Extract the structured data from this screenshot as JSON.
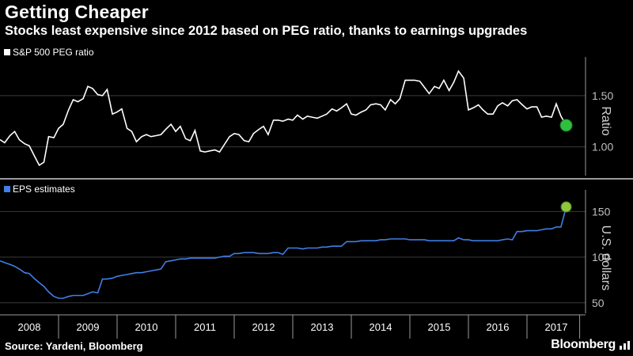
{
  "header": {
    "title": "Getting Cheaper",
    "subtitle": "Stocks least expensive since 2012 based on PEG ratio, thanks to earnings upgrades"
  },
  "footer": {
    "source": "Source: Yardeni, Bloomberg",
    "brand": "Bloomberg"
  },
  "colors": {
    "background": "#000000",
    "peg_line": "#ffffff",
    "eps_line": "#3f7fe6",
    "highlight": "#27b33a",
    "highlight_fill": "#8dc63f"
  },
  "chart_data": [
    {
      "type": "line",
      "legend": "S&P 500 PEG ratio",
      "ylabel": "Ratio",
      "ylim": [
        0.75,
        1.8
      ],
      "yticks": [
        "1.00",
        "1.50"
      ],
      "xlim": [
        2008.0,
        2018.0
      ],
      "xticks": [
        "2008",
        "2009",
        "2010",
        "2011",
        "2012",
        "2013",
        "2014",
        "2015",
        "2016",
        "2017"
      ],
      "highlight_last": true,
      "series": [
        {
          "name": "S&P 500 PEG ratio",
          "x": [
            2008.0,
            2008.08,
            2008.17,
            2008.25,
            2008.33,
            2008.42,
            2008.5,
            2008.58,
            2008.67,
            2008.75,
            2008.83,
            2008.92,
            2009.0,
            2009.08,
            2009.17,
            2009.25,
            2009.33,
            2009.42,
            2009.5,
            2009.58,
            2009.67,
            2009.75,
            2009.83,
            2009.92,
            2010.0,
            2010.08,
            2010.17,
            2010.25,
            2010.33,
            2010.42,
            2010.5,
            2010.58,
            2010.67,
            2010.75,
            2010.83,
            2010.92,
            2011.0,
            2011.08,
            2011.17,
            2011.25,
            2011.33,
            2011.42,
            2011.5,
            2011.58,
            2011.67,
            2011.75,
            2011.83,
            2011.92,
            2012.0,
            2012.08,
            2012.17,
            2012.25,
            2012.33,
            2012.42,
            2012.5,
            2012.58,
            2012.67,
            2012.75,
            2012.83,
            2012.92,
            2013.0,
            2013.08,
            2013.17,
            2013.25,
            2013.33,
            2013.42,
            2013.5,
            2013.58,
            2013.67,
            2013.75,
            2013.83,
            2013.92,
            2014.0,
            2014.08,
            2014.17,
            2014.25,
            2014.33,
            2014.42,
            2014.5,
            2014.58,
            2014.67,
            2014.75,
            2014.83,
            2014.92,
            2015.0,
            2015.08,
            2015.17,
            2015.25,
            2015.33,
            2015.42,
            2015.5,
            2015.58,
            2015.67,
            2015.75,
            2015.83,
            2015.92,
            2016.0,
            2016.08,
            2016.17,
            2016.25,
            2016.33,
            2016.42,
            2016.5,
            2016.58,
            2016.67,
            2016.75,
            2016.83,
            2016.92,
            2017.0,
            2017.08,
            2017.17,
            2017.25,
            2017.33,
            2017.42,
            2017.5,
            2017.58,
            2017.67
          ],
          "y": [
            1.07,
            1.04,
            1.11,
            1.15,
            1.07,
            1.03,
            1.01,
            0.92,
            0.82,
            0.85,
            1.1,
            1.09,
            1.18,
            1.22,
            1.36,
            1.46,
            1.44,
            1.47,
            1.59,
            1.57,
            1.51,
            1.5,
            1.56,
            1.32,
            1.34,
            1.37,
            1.18,
            1.15,
            1.05,
            1.1,
            1.12,
            1.1,
            1.11,
            1.12,
            1.17,
            1.22,
            1.15,
            1.2,
            1.08,
            1.06,
            1.16,
            0.96,
            0.95,
            0.96,
            0.97,
            0.95,
            1.02,
            1.1,
            1.13,
            1.12,
            1.06,
            1.05,
            1.13,
            1.17,
            1.2,
            1.12,
            1.26,
            1.26,
            1.25,
            1.27,
            1.26,
            1.31,
            1.27,
            1.3,
            1.29,
            1.28,
            1.3,
            1.32,
            1.37,
            1.35,
            1.38,
            1.42,
            1.32,
            1.31,
            1.34,
            1.36,
            1.41,
            1.42,
            1.41,
            1.36,
            1.46,
            1.42,
            1.47,
            1.65,
            1.65,
            1.65,
            1.64,
            1.58,
            1.52,
            1.59,
            1.57,
            1.65,
            1.55,
            1.63,
            1.74,
            1.67,
            1.36,
            1.38,
            1.41,
            1.36,
            1.32,
            1.32,
            1.4,
            1.43,
            1.4,
            1.45,
            1.46,
            1.41,
            1.37,
            1.39,
            1.39,
            1.29,
            1.3,
            1.29,
            1.42,
            1.3,
            1.21
          ]
        }
      ]
    },
    {
      "type": "line",
      "legend": "EPS estimates",
      "ylabel": "U.S. dollars",
      "ylim": [
        42,
        165
      ],
      "yticks": [
        "50",
        "100",
        "150"
      ],
      "xlim": [
        2008.0,
        2018.0
      ],
      "xticks": [
        "2008",
        "2009",
        "2010",
        "2011",
        "2012",
        "2013",
        "2014",
        "2015",
        "2016",
        "2017"
      ],
      "highlight_last": true,
      "series": [
        {
          "name": "EPS estimates",
          "x": [
            2008.0,
            2008.08,
            2008.17,
            2008.25,
            2008.33,
            2008.42,
            2008.5,
            2008.58,
            2008.67,
            2008.75,
            2008.83,
            2008.92,
            2009.0,
            2009.08,
            2009.17,
            2009.25,
            2009.33,
            2009.42,
            2009.5,
            2009.58,
            2009.67,
            2009.75,
            2009.83,
            2009.92,
            2010.0,
            2010.08,
            2010.17,
            2010.25,
            2010.33,
            2010.42,
            2010.5,
            2010.58,
            2010.67,
            2010.75,
            2010.83,
            2010.92,
            2011.0,
            2011.08,
            2011.17,
            2011.25,
            2011.33,
            2011.42,
            2011.5,
            2011.58,
            2011.67,
            2011.75,
            2011.83,
            2011.92,
            2012.0,
            2012.08,
            2012.17,
            2012.25,
            2012.33,
            2012.42,
            2012.5,
            2012.58,
            2012.67,
            2012.75,
            2012.83,
            2012.92,
            2013.0,
            2013.08,
            2013.17,
            2013.25,
            2013.33,
            2013.42,
            2013.5,
            2013.58,
            2013.67,
            2013.75,
            2013.83,
            2013.92,
            2014.0,
            2014.08,
            2014.17,
            2014.25,
            2014.33,
            2014.42,
            2014.5,
            2014.58,
            2014.67,
            2014.75,
            2014.83,
            2014.92,
            2015.0,
            2015.08,
            2015.17,
            2015.25,
            2015.33,
            2015.42,
            2015.5,
            2015.58,
            2015.67,
            2015.75,
            2015.83,
            2015.92,
            2016.0,
            2016.08,
            2016.17,
            2016.25,
            2016.33,
            2016.42,
            2016.5,
            2016.58,
            2016.67,
            2016.75,
            2016.83,
            2016.92,
            2017.0,
            2017.08,
            2017.17,
            2017.25,
            2017.33,
            2017.42,
            2017.5,
            2017.58,
            2017.67
          ],
          "y": [
            96,
            94,
            92,
            90,
            87,
            83,
            82,
            77,
            72,
            68,
            62,
            57,
            55,
            55,
            57,
            58,
            58,
            58,
            60,
            62,
            61,
            76,
            76,
            77,
            79,
            80,
            81,
            82,
            83,
            83,
            84,
            85,
            86,
            87,
            95,
            96,
            97,
            98,
            98,
            99,
            99,
            99,
            99,
            99,
            99,
            100,
            101,
            101,
            104,
            104,
            105,
            105,
            105,
            104,
            104,
            104,
            105,
            105,
            103,
            110,
            110,
            110,
            109,
            110,
            110,
            110,
            111,
            111,
            112,
            112,
            112,
            117,
            117,
            117,
            118,
            118,
            118,
            118,
            119,
            119,
            120,
            120,
            120,
            120,
            119,
            119,
            119,
            119,
            118,
            118,
            118,
            118,
            118,
            118,
            121,
            119,
            119,
            118,
            118,
            118,
            118,
            118,
            118,
            119,
            120,
            119,
            128,
            128,
            129,
            129,
            129,
            130,
            131,
            131,
            133,
            133,
            155
          ]
        }
      ]
    }
  ]
}
